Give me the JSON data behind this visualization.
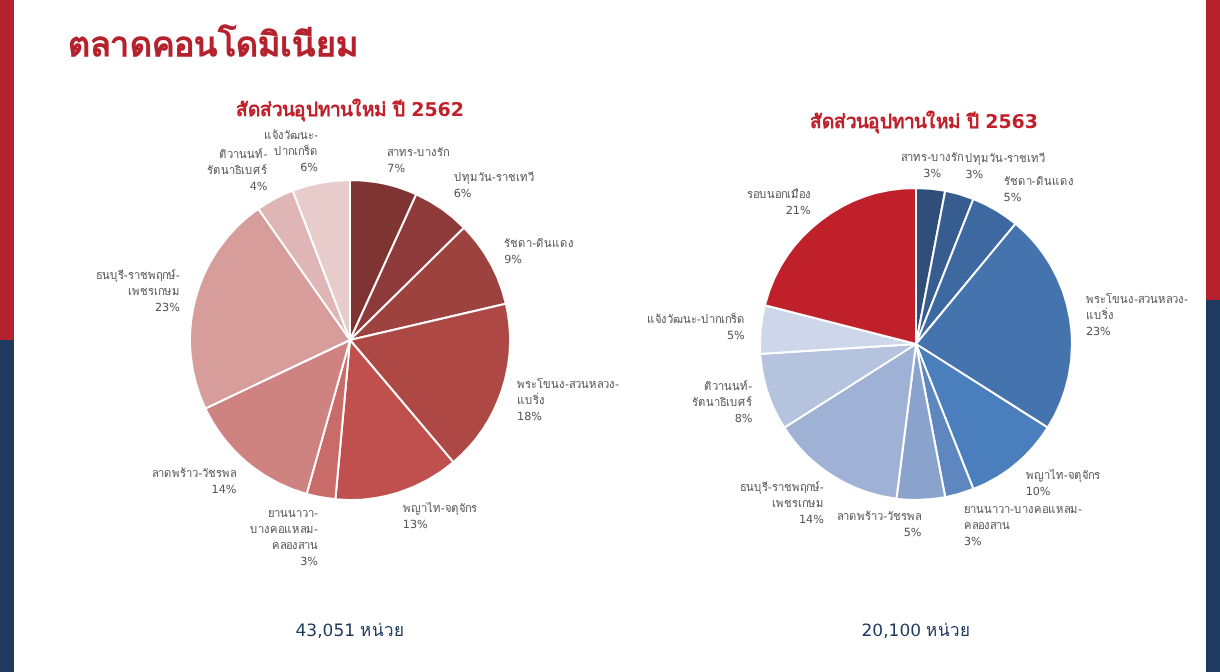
{
  "chart_data": [
    {
      "type": "pie",
      "title": "สัดส่วนอุปทานใหม่ ปี 2562",
      "value_labels": [
        "7%",
        "6%",
        "9%",
        "18%",
        "13%",
        "3%",
        "14%",
        "23%",
        "4%",
        "6%"
      ],
      "annotations": [
        "ตลาดคอนโดมิเนียม",
        "43,051 หน่วย"
      ],
      "categories": [
        "สาทร-บางรัก",
        "ปทุมวัน-ราชเทวี",
        "รัชดา-ดินแดง",
        "พระโขนง-สวนหลวง-แบริ่ง",
        "พญาไท-จตุจักร",
        "ยานนาวา-บางคอแหลม-คลองสาน",
        "ลาดพร้าว-วัชรพล",
        "ธนบุรี-ราชพฤกษ์-เพชรเกษม",
        "ติวานนท์-รัตนาธิเบศร์",
        "แจ้งวัฒนะ-ปากเกร็ด"
      ],
      "values": [
        7,
        6,
        9,
        18,
        13,
        3,
        14,
        23,
        4,
        6
      ],
      "colors": [
        "#7f3333",
        "#8e3a3a",
        "#9e4240",
        "#ad4844",
        "#c0504d",
        "#c96b68",
        "#cf8380",
        "#d69d9b",
        "#dfb6b5",
        "#e8cccc"
      ]
    },
    {
      "type": "pie",
      "title": "สัดส่วนอุปทานใหม่ ปี 2563",
      "value_labels": [
        "3%",
        "3%",
        "5%",
        "23%",
        "10%",
        "3%",
        "5%",
        "14%",
        "8%",
        "5%",
        "21%"
      ],
      "annotations": [
        "20,100 หน่วย"
      ],
      "categories": [
        "สาทร-บางรัก",
        "ปทุมวัน-ราชเทวี",
        "รัชดา-ดินแดง",
        "พระโขนง-สวนหลวง-แบริ่ง",
        "พญาไท-จตุจักร",
        "ยานนาวา-บางคอแหลม-คลองสาน",
        "ลาดพร้าว-วัชรพล",
        "ธนบุรี-ราชพฤกษ์-เพชรเกษม",
        "ติวานนท์-รัตนาธิเบศร์",
        "แจ้งวัฒนะ-ปากเกร็ด",
        "รอบนอกเมือง"
      ],
      "values": [
        3,
        3,
        5,
        23,
        10,
        3,
        5,
        14,
        8,
        5,
        21
      ],
      "colors": [
        "#2f4f7a",
        "#375c8f",
        "#3d68a0",
        "#4573ae",
        "#4a7ebd",
        "#5f87bf",
        "#8aa3cc",
        "#9fb2d5",
        "#b5c3de",
        "#cdd7e9",
        "#c0202a"
      ]
    }
  ]
}
